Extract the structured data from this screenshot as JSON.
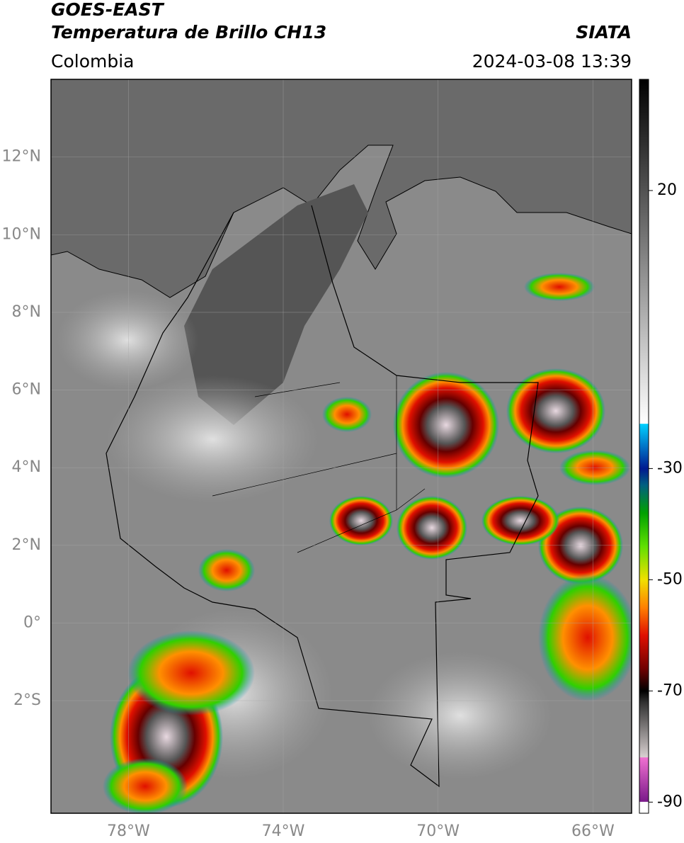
{
  "header": {
    "satellite": "GOES-EAST",
    "product": "Temperatura de Brillo CH13",
    "region": "Colombia",
    "agency": "SIATA",
    "timestamp": "2024-03-08 13:39"
  },
  "map": {
    "xlim": [
      -80,
      -65
    ],
    "ylim": [
      -4.9,
      14
    ],
    "grid": true,
    "xticks": [
      {
        "value": -78,
        "label": "78°W"
      },
      {
        "value": -74,
        "label": "74°W"
      },
      {
        "value": -70,
        "label": "70°W"
      },
      {
        "value": -66,
        "label": "66°W"
      }
    ],
    "yticks": [
      {
        "value": 12,
        "label": "12°N"
      },
      {
        "value": 10,
        "label": "10°N"
      },
      {
        "value": 8,
        "label": "8°N"
      },
      {
        "value": 6,
        "label": "6°N"
      },
      {
        "value": 4,
        "label": "4°N"
      },
      {
        "value": 2,
        "label": "2°N"
      },
      {
        "value": 0,
        "label": "0°"
      },
      {
        "value": -2,
        "label": "2°S"
      }
    ]
  },
  "colorbar": {
    "lim": [
      -92,
      40
    ],
    "ticks": [
      20,
      -30,
      -50,
      -70,
      -90
    ],
    "colormap": [
      {
        "value": -92,
        "color": "#ffffff"
      },
      {
        "value": -90,
        "color": "#ffffff"
      },
      {
        "value": -89.9,
        "color": "#7a1a8a"
      },
      {
        "value": -82,
        "color": "#f070d0"
      },
      {
        "value": -81.9,
        "color": "#d8d0d0"
      },
      {
        "value": -72,
        "color": "#303030"
      },
      {
        "value": -70,
        "color": "#000000"
      },
      {
        "value": -66,
        "color": "#700000"
      },
      {
        "value": -60,
        "color": "#e01000"
      },
      {
        "value": -55,
        "color": "#ff8000"
      },
      {
        "value": -50,
        "color": "#f0e000"
      },
      {
        "value": -44,
        "color": "#60e000"
      },
      {
        "value": -38,
        "color": "#00a000"
      },
      {
        "value": -33,
        "color": "#006080"
      },
      {
        "value": -30,
        "color": "#001a90"
      },
      {
        "value": -22,
        "color": "#00d0ff"
      },
      {
        "value": -21.9,
        "color": "#ffffff"
      },
      {
        "value": 40,
        "color": "#000000"
      }
    ]
  }
}
